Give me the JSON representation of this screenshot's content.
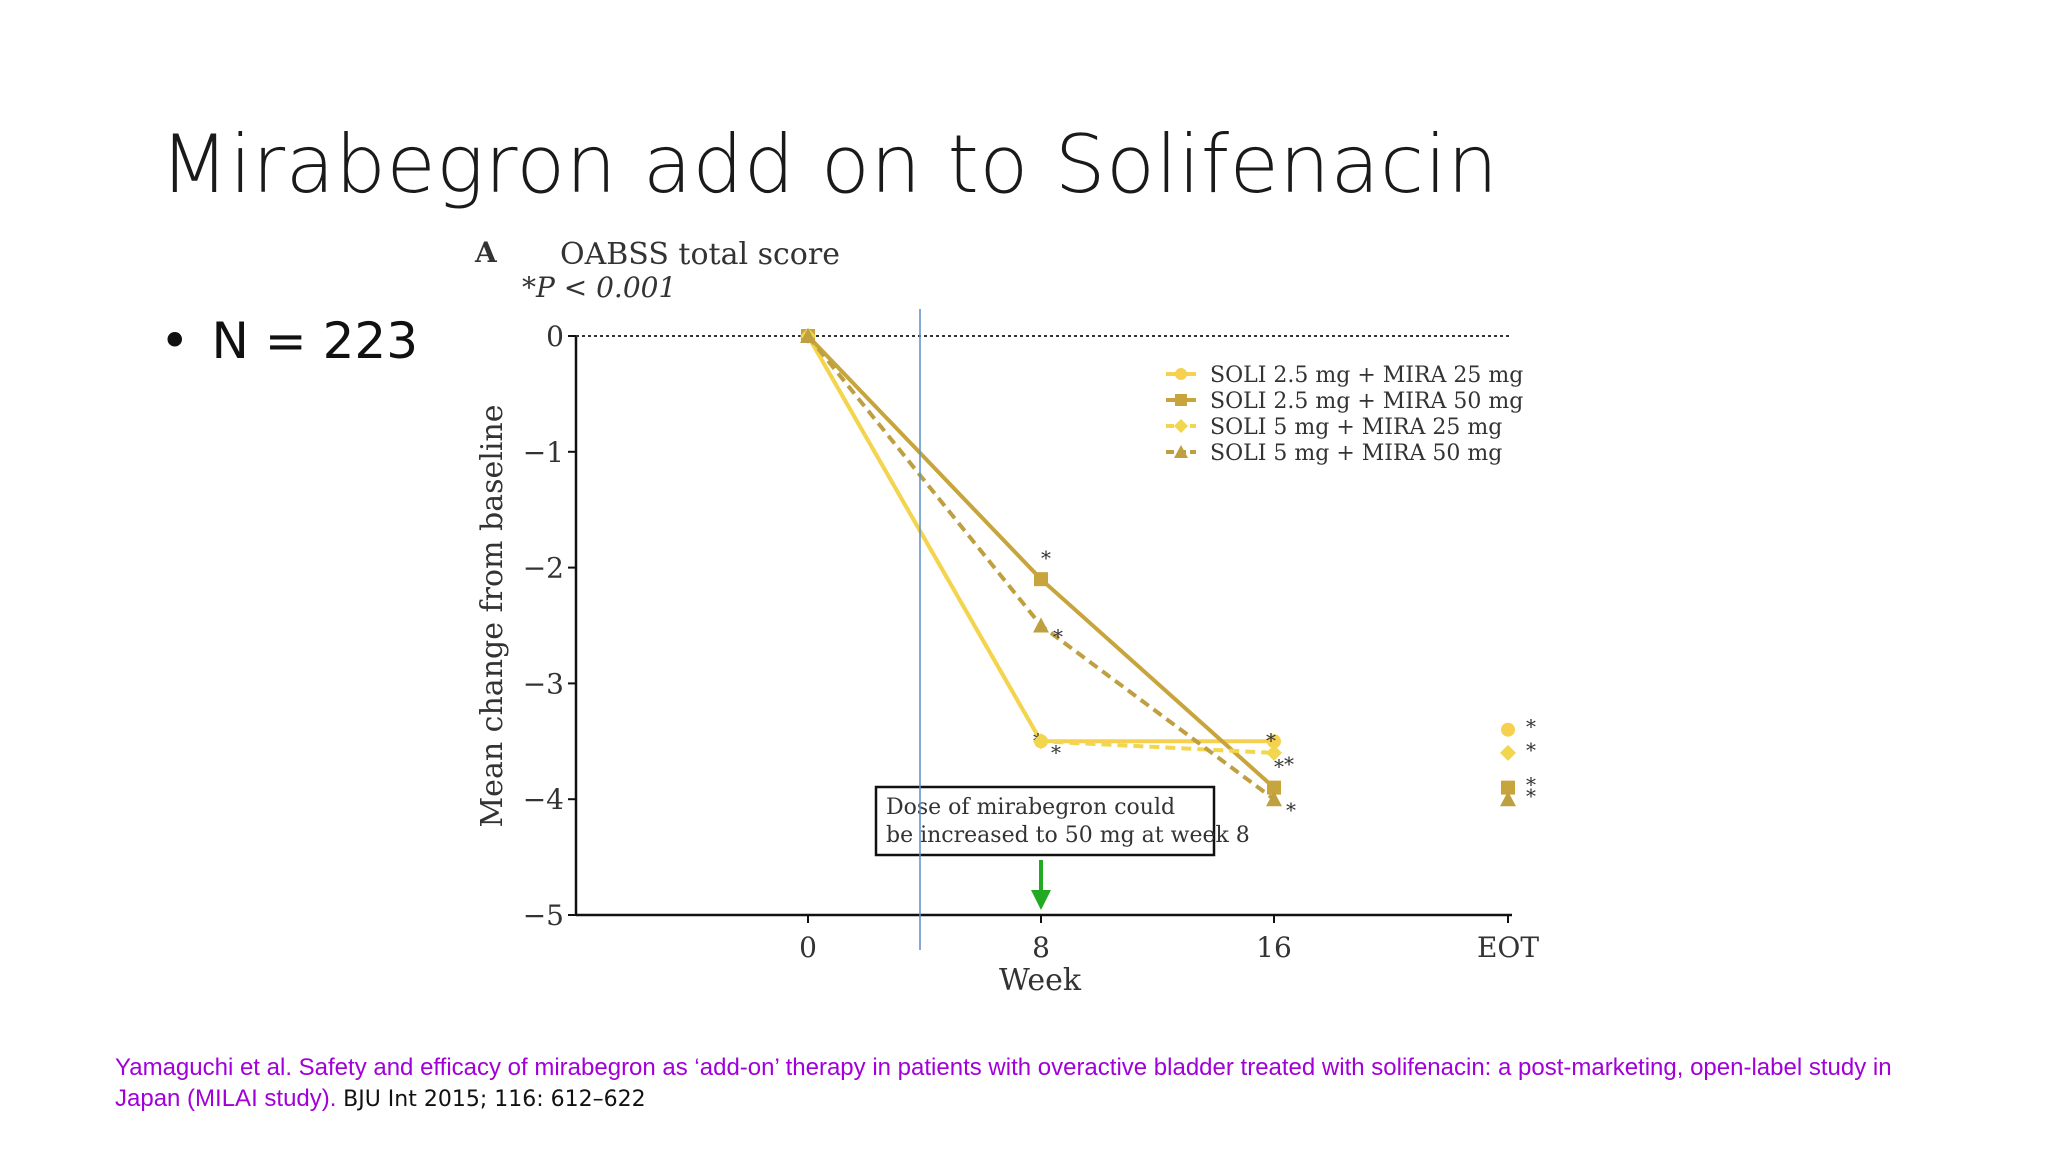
{
  "slide": {
    "title": "Mirabegron add on to Solifenacin",
    "bullet": "N = 223",
    "bullet_symbol": "•"
  },
  "citation": {
    "text": "Yamaguchi et al. Safety and efficacy of mirabegron as ‘add-on’ therapy in patients with overactive bladder treated with solifenacin: a post-marketing, open-label study in Japan (MILAI study).",
    "journal": "BJU Int 2015; 116: 612–622",
    "color": "#a100d8"
  },
  "chart_data": {
    "type": "line",
    "panel_label": "A",
    "title": "OABSS total score",
    "subtitle": "*P < 0.001",
    "xlabel": "Week",
    "ylabel": "Mean change from baseline",
    "categories": [
      "0",
      "8",
      "16",
      "EOT"
    ],
    "ylim": [
      -5,
      0
    ],
    "yticks": [
      "0",
      "−1",
      "−2",
      "−3",
      "−4",
      "−5"
    ],
    "ytick_values": [
      0,
      -1,
      -2,
      -3,
      -4,
      -5
    ],
    "legend_position": "top-right",
    "series": [
      {
        "name": "SOLI 2.5 mg + MIRA 25 mg",
        "values": [
          0,
          -3.5,
          -3.5,
          -3.4
        ],
        "marker": "circle",
        "dash": "solid",
        "color": "#f5d14f",
        "significant": [
          false,
          true,
          true,
          true
        ]
      },
      {
        "name": "SOLI 2.5 mg + MIRA 50 mg",
        "values": [
          0,
          -2.1,
          -3.9,
          -3.9
        ],
        "marker": "square",
        "dash": "solid",
        "color": "#c7a53c",
        "significant": [
          false,
          true,
          true,
          true
        ]
      },
      {
        "name": "SOLI 5 mg + MIRA 25 mg",
        "values": [
          0,
          -3.5,
          -3.6,
          -3.6
        ],
        "marker": "diamond",
        "dash": "dashed",
        "color": "#f2d64d",
        "significant": [
          false,
          true,
          true,
          true
        ]
      },
      {
        "name": "SOLI 5 mg + MIRA 50 mg",
        "values": [
          0,
          -2.5,
          -4.0,
          -4.0
        ],
        "marker": "triangle",
        "dash": "dashed",
        "color": "#bfa040",
        "significant": [
          false,
          true,
          true,
          true
        ]
      }
    ],
    "significance_symbol": "*",
    "annotation": {
      "lines": [
        "Dose of mirabegron could",
        "be increased to 50 mg at week 8"
      ],
      "arrow_color": "#22aa22",
      "points_to": "8"
    },
    "baseline_dotted_at": 0
  }
}
